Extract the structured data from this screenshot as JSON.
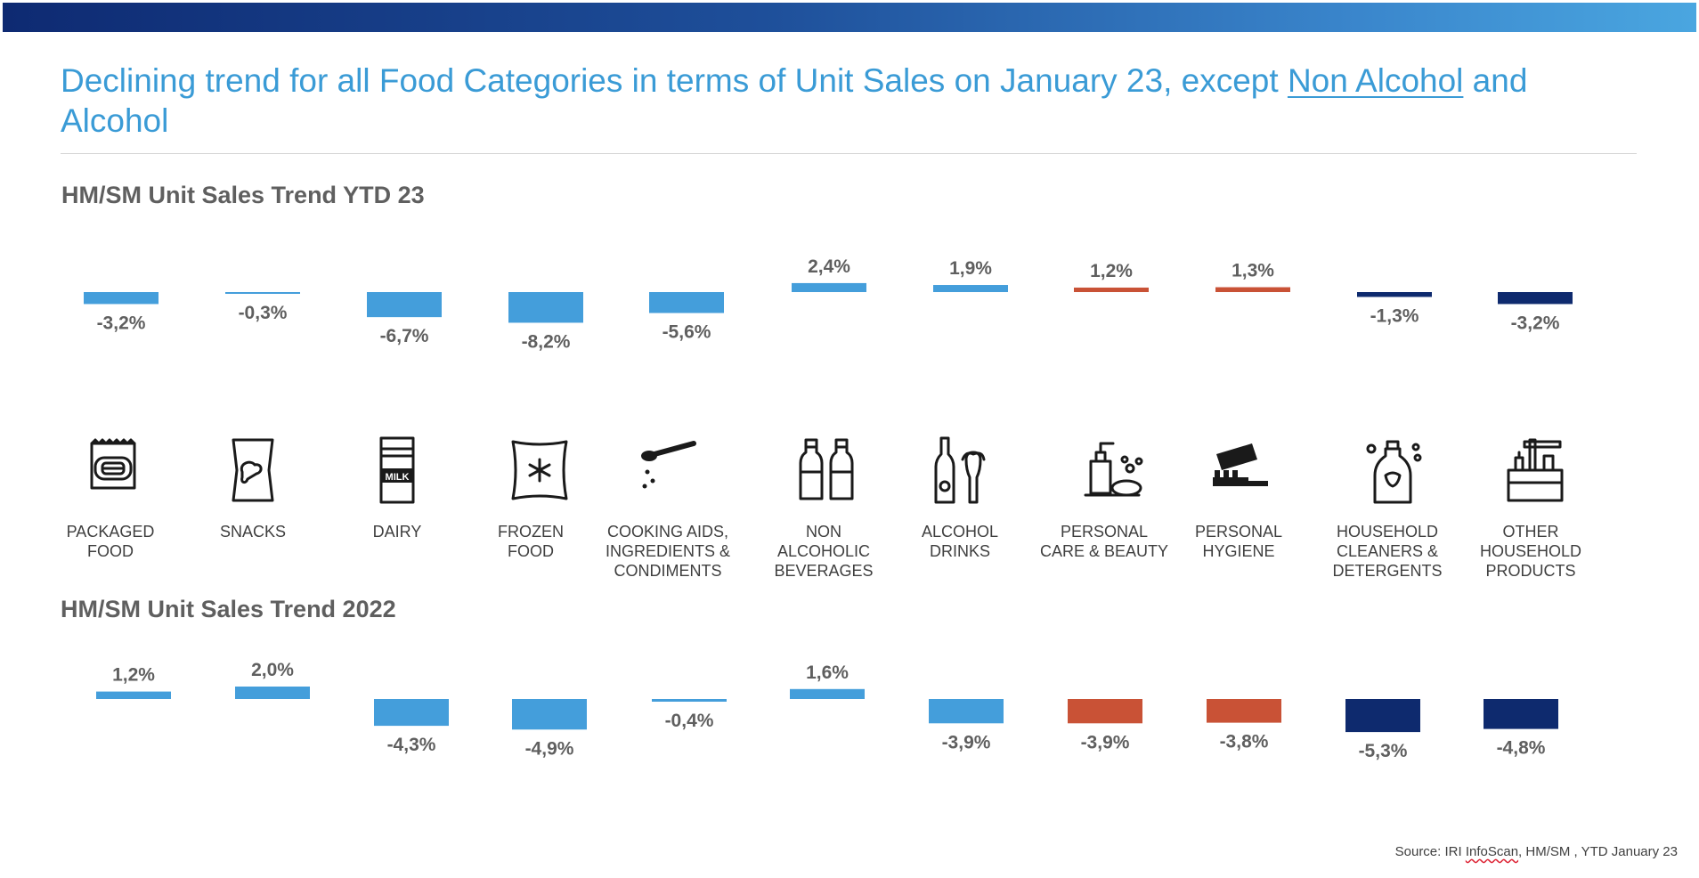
{
  "headline": {
    "part1": "Declining trend for all Food Categories in terms of Unit Sales on January 23, except ",
    "link": "Non Alcohol",
    "part2": " and Alcohol"
  },
  "colors": {
    "bar_light_blue": "#449edb",
    "bar_orange": "#c95236",
    "bar_navy": "#0e2a6e",
    "headline": "#3a9bd6"
  },
  "categories": [
    {
      "label": [
        "PACKAGED",
        "FOOD"
      ],
      "icon": "packaged-food-icon"
    },
    {
      "label": [
        "SNACKS"
      ],
      "icon": "snack-bag-icon"
    },
    {
      "label": [
        "DAIRY"
      ],
      "icon": "milk-carton-icon"
    },
    {
      "label": [
        "FROZEN",
        "FOOD"
      ],
      "icon": "frozen-food-icon"
    },
    {
      "label": [
        "COOKING AIDS,",
        "INGREDIENTS &",
        "CONDIMENTS"
      ],
      "icon": "spoon-icon"
    },
    {
      "label": [
        "NON",
        "ALCOHOLIC",
        "BEVERAGES"
      ],
      "icon": "water-bottles-icon"
    },
    {
      "label": [
        "ALCOHOL",
        "DRINKS"
      ],
      "icon": "beer-bottle-glass-icon"
    },
    {
      "label": [
        "PERSONAL",
        "CARE & BEAUTY"
      ],
      "icon": "soap-dispenser-icon"
    },
    {
      "label": [
        "PERSONAL",
        "HYGIENE"
      ],
      "icon": "toothbrush-icon"
    },
    {
      "label": [
        "HOUSEHOLD",
        "CLEANERS &",
        "DETERGENTS"
      ],
      "icon": "detergent-bottle-icon"
    },
    {
      "label": [
        "OTHER",
        "HOUSEHOLD",
        "PRODUCTS"
      ],
      "icon": "cleaning-supplies-icon"
    }
  ],
  "chart_data": [
    {
      "type": "bar",
      "title": "HM/SM Unit Sales Trend YTD 23",
      "unit": "%",
      "values": [
        -3.2,
        -0.3,
        -6.7,
        -8.2,
        -5.6,
        2.4,
        1.9,
        1.2,
        1.3,
        -1.3,
        -3.2
      ],
      "value_labels": [
        "-3,2%",
        "-0,3%",
        "-6,7%",
        "-8,2%",
        "-5,6%",
        "2,4%",
        "1,9%",
        "1,2%",
        "1,3%",
        "-1,3%",
        "-3,2%"
      ],
      "bar_colors": [
        "#449edb",
        "#449edb",
        "#449edb",
        "#449edb",
        "#449edb",
        "#449edb",
        "#449edb",
        "#c95236",
        "#c95236",
        "#0e2a6e",
        "#0e2a6e"
      ]
    },
    {
      "type": "bar",
      "title": "HM/SM Unit Sales Trend 2022",
      "unit": "%",
      "values": [
        1.2,
        2.0,
        -4.3,
        -4.9,
        -0.4,
        1.6,
        -3.9,
        -3.9,
        -3.8,
        -5.3,
        -4.8
      ],
      "value_labels": [
        "1,2%",
        "2,0%",
        "-4,3%",
        "-4,9%",
        "-0,4%",
        "1,6%",
        "-3,9%",
        "-3,9%",
        "-3,8%",
        "-5,3%",
        "-4,8%"
      ],
      "bar_colors": [
        "#449edb",
        "#449edb",
        "#449edb",
        "#449edb",
        "#449edb",
        "#449edb",
        "#449edb",
        "#c95236",
        "#c95236",
        "#0e2a6e",
        "#0e2a6e"
      ]
    }
  ],
  "source": {
    "prefix": "Source: IRI ",
    "squiggle": "InfoScan",
    "suffix": ", HM/SM , YTD January 23"
  }
}
